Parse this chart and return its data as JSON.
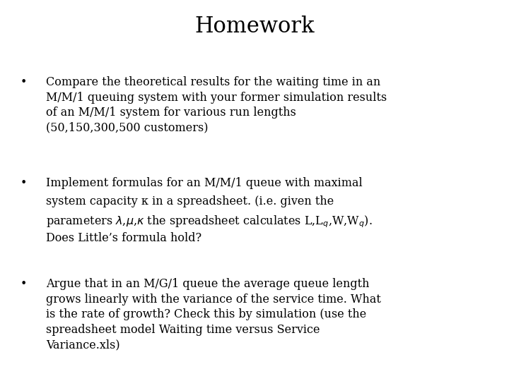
{
  "title": "Homework",
  "title_fontsize": 22,
  "title_fontfamily": "serif",
  "background_color": "#ffffff",
  "text_color": "#000000",
  "bullet1": "Compare the theoretical results for the waiting time in an\nM/M/1 queuing system with your former simulation results\nof an M/M/1 system for various run lengths\n(50,150,300,500 customers)",
  "bullet2_line1": "Implement formulas for an M/M/1 queue with maximal",
  "bullet2_line2": "system capacity κ in a spreadsheet. (i.e. given the",
  "bullet2_line3a": "parameters λ,μ,κ the spreadsheet calculates L,L",
  "bullet2_line3b": ",W,W",
  "bullet2_line3c": ").",
  "bullet2_line4": "Does Little’s formula hold?",
  "bullet3": "Argue that in an M/G/1 queue the average queue length\ngrows linearly with the variance of the service time. What\nis the rate of growth? Check this by simulation (use the\nspreadsheet model Waiting time versus Service\nVariance.xls)",
  "body_fontsize": 11.5,
  "sub_fontsize": 8.5,
  "body_fontfamily": "serif",
  "bullet_char": "•"
}
